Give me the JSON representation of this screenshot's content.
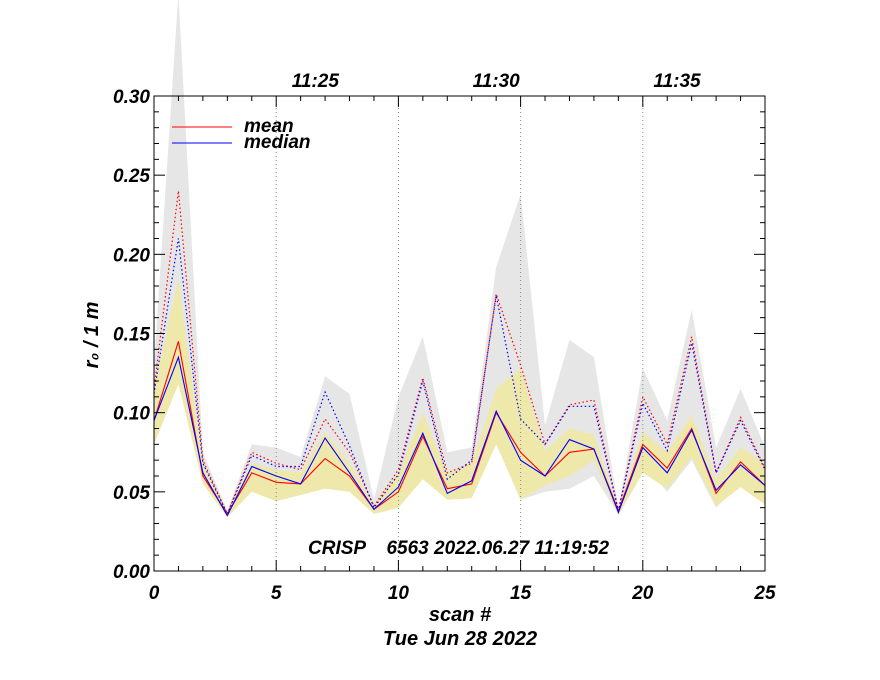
{
  "chart_data": {
    "type": "line",
    "title": "",
    "xlabel": "scan #",
    "ylabel": "r₀ / 1 m",
    "xlim": [
      0,
      25
    ],
    "ylim": [
      0,
      0.3
    ],
    "x_ticks": [
      0,
      5,
      10,
      15,
      20,
      25
    ],
    "x_tick_labels": [
      "0",
      "5",
      "10",
      "15",
      "20",
      "25"
    ],
    "y_ticks": [
      0.0,
      0.05,
      0.1,
      0.15,
      0.2,
      0.25,
      0.3
    ],
    "y_tick_labels": [
      "0.00",
      "0.05",
      "0.10",
      "0.15",
      "0.20",
      "0.25",
      "0.30"
    ],
    "top_axis": {
      "ticks": [
        {
          "x": 6.6,
          "label": "11:25"
        },
        {
          "x": 14.0,
          "label": "11:30"
        },
        {
          "x": 21.4,
          "label": "11:35"
        }
      ],
      "vertical_dotted_lines_at_x": [
        5.0,
        10.0,
        15.0,
        20.0
      ]
    },
    "x": [
      0,
      1,
      2,
      3,
      4,
      5,
      6,
      7,
      8,
      9,
      10,
      11,
      12,
      13,
      14,
      15,
      16,
      17,
      18,
      19,
      20,
      21,
      22,
      23,
      24,
      25
    ],
    "series": [
      {
        "name": "mean",
        "color": "#ff0000",
        "style": "solid",
        "values": [
          0.095,
          0.145,
          0.06,
          0.036,
          0.062,
          0.056,
          0.055,
          0.071,
          0.06,
          0.039,
          0.05,
          0.085,
          0.052,
          0.055,
          0.1,
          0.075,
          0.06,
          0.075,
          0.077,
          0.038,
          0.08,
          0.065,
          0.09,
          0.049,
          0.069,
          0.054
        ]
      },
      {
        "name": "median",
        "color": "#0000ff",
        "style": "solid",
        "values": [
          0.095,
          0.135,
          0.062,
          0.035,
          0.066,
          0.06,
          0.055,
          0.084,
          0.062,
          0.039,
          0.053,
          0.087,
          0.049,
          0.057,
          0.101,
          0.07,
          0.06,
          0.083,
          0.077,
          0.037,
          0.078,
          0.062,
          0.089,
          0.051,
          0.067,
          0.054
        ]
      },
      {
        "name": "mean upper",
        "color": "#ff0000",
        "style": "dotted",
        "values": [
          0.115,
          0.24,
          0.07,
          0.036,
          0.075,
          0.068,
          0.064,
          0.096,
          0.075,
          0.041,
          0.064,
          0.122,
          0.062,
          0.068,
          0.175,
          0.13,
          0.08,
          0.105,
          0.108,
          0.038,
          0.11,
          0.08,
          0.148,
          0.062,
          0.097,
          0.065
        ]
      },
      {
        "name": "median upper",
        "color": "#0000ff",
        "style": "dotted",
        "values": [
          0.112,
          0.21,
          0.068,
          0.036,
          0.073,
          0.066,
          0.066,
          0.113,
          0.079,
          0.04,
          0.061,
          0.12,
          0.058,
          0.07,
          0.174,
          0.096,
          0.08,
          0.104,
          0.104,
          0.038,
          0.106,
          0.076,
          0.144,
          0.062,
          0.095,
          0.064
        ]
      }
    ],
    "bands": [
      {
        "name": "grey range",
        "color": "#e6e6e6",
        "upper": [
          0.13,
          0.365,
          0.075,
          0.038,
          0.08,
          0.078,
          0.072,
          0.123,
          0.112,
          0.045,
          0.11,
          0.148,
          0.075,
          0.078,
          0.192,
          0.238,
          0.092,
          0.146,
          0.135,
          0.04,
          0.128,
          0.095,
          0.165,
          0.078,
          0.115,
          0.078
        ],
        "lower": [
          0.08,
          0.12,
          0.055,
          0.035,
          0.055,
          0.048,
          0.048,
          0.058,
          0.055,
          0.036,
          0.045,
          0.06,
          0.046,
          0.048,
          0.09,
          0.045,
          0.05,
          0.052,
          0.06,
          0.036,
          0.068,
          0.05,
          0.07,
          0.04,
          0.055,
          0.042
        ]
      },
      {
        "name": "yellow range",
        "color": "#eee8aa",
        "upper": [
          0.115,
          0.185,
          0.068,
          0.038,
          0.068,
          0.064,
          0.062,
          0.088,
          0.068,
          0.042,
          0.062,
          0.1,
          0.062,
          0.068,
          0.115,
          0.128,
          0.076,
          0.09,
          0.086,
          0.039,
          0.088,
          0.075,
          0.098,
          0.058,
          0.078,
          0.068
        ],
        "lower": [
          0.08,
          0.118,
          0.055,
          0.034,
          0.05,
          0.044,
          0.048,
          0.052,
          0.05,
          0.036,
          0.04,
          0.058,
          0.045,
          0.046,
          0.08,
          0.045,
          0.054,
          0.06,
          0.07,
          0.035,
          0.062,
          0.052,
          0.072,
          0.041,
          0.053,
          0.042
        ]
      }
    ],
    "legend": [
      {
        "label": "mean",
        "color": "#ff0000"
      },
      {
        "label": "median",
        "color": "#0000ff"
      }
    ],
    "legend_position": "top-left",
    "annotation": "CRISP    6563 2022.06.27 11:19:52",
    "footer": "Tue Jun 28 2022"
  }
}
